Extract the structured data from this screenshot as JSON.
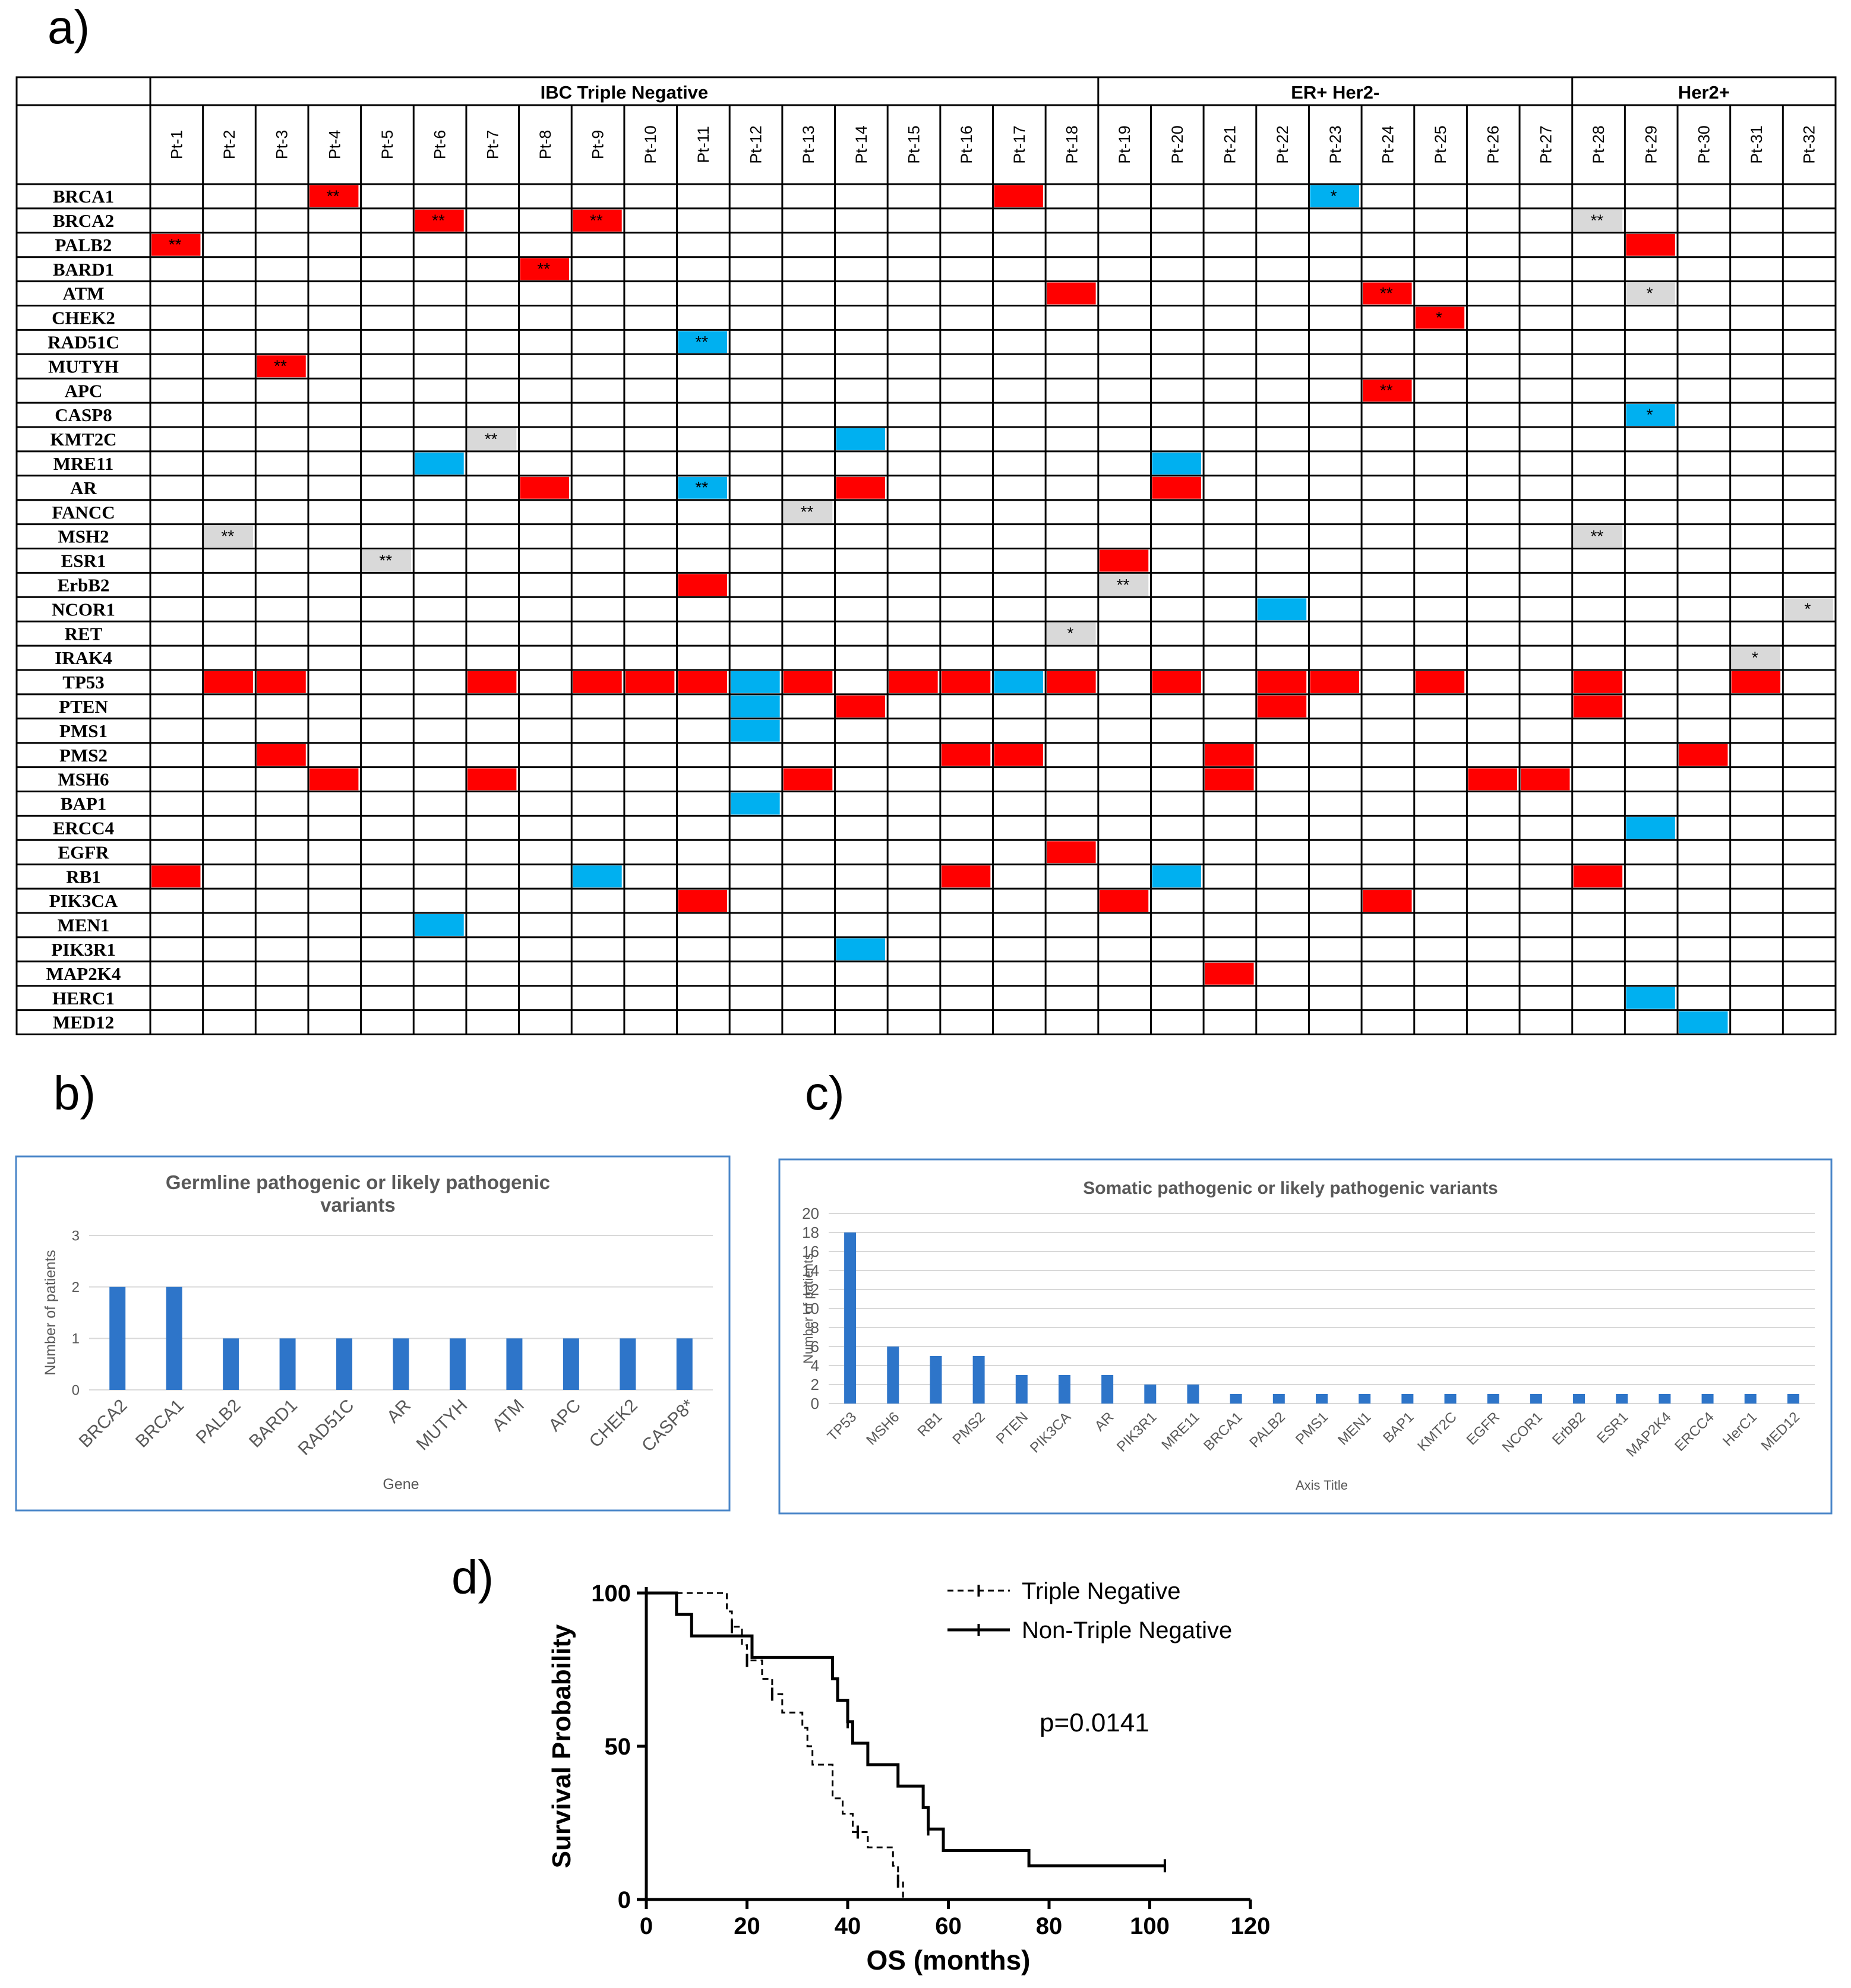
{
  "panels": {
    "a": "a)",
    "b": "b)",
    "c": "c)",
    "d": "d)"
  },
  "colors": {
    "red": "#ff0000",
    "blue": "#00b0f0",
    "grey": "#d9d9d9",
    "bar": "#2e75c9"
  },
  "panel_a": {
    "groups": [
      {
        "label": "IBC Triple Negative",
        "from": 0,
        "to": 17
      },
      {
        "label": "ER+ Her2-",
        "from": 18,
        "to": 26
      },
      {
        "label": "Her2+",
        "from": 27,
        "to": 31
      }
    ],
    "patients": [
      "Pt-1",
      "Pt-2",
      "Pt-3",
      "Pt-4",
      "Pt-5",
      "Pt-6",
      "Pt-7",
      "Pt-8",
      "Pt-9",
      "Pt-10",
      "Pt-11",
      "Pt-12",
      "Pt-13",
      "Pt-14",
      "Pt-15",
      "Pt-16",
      "Pt-17",
      "Pt-18",
      "Pt-19",
      "Pt-20",
      "Pt-21",
      "Pt-22",
      "Pt-23",
      "Pt-24",
      "Pt-25",
      "Pt-26",
      "Pt-27",
      "Pt-28",
      "Pt-29",
      "Pt-30",
      "Pt-31",
      "Pt-32"
    ],
    "genes": [
      "BRCA1",
      "BRCA2",
      "PALB2",
      "BARD1",
      "ATM",
      "CHEK2",
      "RAD51C",
      "MUTYH",
      "APC",
      "CASP8",
      "KMT2C",
      "MRE11",
      "AR",
      "FANCC",
      "MSH2",
      "ESR1",
      "ErbB2",
      "NCOR1",
      "RET",
      "IRAK4",
      "TP53",
      "PTEN",
      "PMS1",
      "PMS2",
      "MSH6",
      "BAP1",
      "ERCC4",
      "EGFR",
      "RB1",
      "PIK3CA",
      "MEN1",
      "PIK3R1",
      "MAP2K4",
      "HERC1",
      "MED12"
    ],
    "cells": [
      {
        "g": 0,
        "p": 3,
        "c": "red",
        "t": "**"
      },
      {
        "g": 0,
        "p": 16,
        "c": "red",
        "t": ""
      },
      {
        "g": 0,
        "p": 22,
        "c": "blue",
        "t": "*"
      },
      {
        "g": 1,
        "p": 5,
        "c": "red",
        "t": "**"
      },
      {
        "g": 1,
        "p": 8,
        "c": "red",
        "t": "**"
      },
      {
        "g": 1,
        "p": 27,
        "c": "grey",
        "t": "**"
      },
      {
        "g": 2,
        "p": 0,
        "c": "red",
        "t": "**"
      },
      {
        "g": 2,
        "p": 28,
        "c": "red",
        "t": ""
      },
      {
        "g": 3,
        "p": 7,
        "c": "red",
        "t": "**"
      },
      {
        "g": 4,
        "p": 17,
        "c": "red",
        "t": ""
      },
      {
        "g": 4,
        "p": 23,
        "c": "red",
        "t": "**"
      },
      {
        "g": 4,
        "p": 28,
        "c": "grey",
        "t": "*"
      },
      {
        "g": 5,
        "p": 24,
        "c": "red",
        "t": "*"
      },
      {
        "g": 6,
        "p": 10,
        "c": "blue",
        "t": "**"
      },
      {
        "g": 7,
        "p": 2,
        "c": "red",
        "t": "**"
      },
      {
        "g": 8,
        "p": 23,
        "c": "red",
        "t": "**"
      },
      {
        "g": 9,
        "p": 28,
        "c": "blue",
        "t": "*"
      },
      {
        "g": 10,
        "p": 6,
        "c": "grey",
        "t": "**"
      },
      {
        "g": 10,
        "p": 13,
        "c": "blue",
        "t": ""
      },
      {
        "g": 11,
        "p": 5,
        "c": "blue",
        "t": ""
      },
      {
        "g": 11,
        "p": 19,
        "c": "blue",
        "t": ""
      },
      {
        "g": 12,
        "p": 7,
        "c": "red",
        "t": ""
      },
      {
        "g": 12,
        "p": 10,
        "c": "blue",
        "t": "**"
      },
      {
        "g": 12,
        "p": 13,
        "c": "red",
        "t": ""
      },
      {
        "g": 12,
        "p": 19,
        "c": "red",
        "t": ""
      },
      {
        "g": 13,
        "p": 12,
        "c": "grey",
        "t": "**"
      },
      {
        "g": 14,
        "p": 1,
        "c": "grey",
        "t": "**"
      },
      {
        "g": 14,
        "p": 27,
        "c": "grey",
        "t": "**"
      },
      {
        "g": 15,
        "p": 4,
        "c": "grey",
        "t": "**"
      },
      {
        "g": 15,
        "p": 18,
        "c": "red",
        "t": ""
      },
      {
        "g": 16,
        "p": 10,
        "c": "red",
        "t": ""
      },
      {
        "g": 16,
        "p": 18,
        "c": "grey",
        "t": "**"
      },
      {
        "g": 17,
        "p": 21,
        "c": "blue",
        "t": ""
      },
      {
        "g": 17,
        "p": 31,
        "c": "grey",
        "t": "*"
      },
      {
        "g": 18,
        "p": 17,
        "c": "grey",
        "t": "*"
      },
      {
        "g": 19,
        "p": 30,
        "c": "grey",
        "t": "*"
      },
      {
        "g": 20,
        "p": 1,
        "c": "red",
        "t": ""
      },
      {
        "g": 20,
        "p": 2,
        "c": "red",
        "t": ""
      },
      {
        "g": 20,
        "p": 6,
        "c": "red",
        "t": ""
      },
      {
        "g": 20,
        "p": 8,
        "c": "red",
        "t": ""
      },
      {
        "g": 20,
        "p": 9,
        "c": "red",
        "t": ""
      },
      {
        "g": 20,
        "p": 10,
        "c": "red",
        "t": ""
      },
      {
        "g": 20,
        "p": 11,
        "c": "blue",
        "t": ""
      },
      {
        "g": 20,
        "p": 12,
        "c": "red",
        "t": ""
      },
      {
        "g": 20,
        "p": 14,
        "c": "red",
        "t": ""
      },
      {
        "g": 20,
        "p": 15,
        "c": "red",
        "t": ""
      },
      {
        "g": 20,
        "p": 16,
        "c": "blue",
        "t": ""
      },
      {
        "g": 20,
        "p": 17,
        "c": "red",
        "t": ""
      },
      {
        "g": 20,
        "p": 19,
        "c": "red",
        "t": ""
      },
      {
        "g": 20,
        "p": 21,
        "c": "red",
        "t": ""
      },
      {
        "g": 20,
        "p": 22,
        "c": "red",
        "t": ""
      },
      {
        "g": 20,
        "p": 24,
        "c": "red",
        "t": ""
      },
      {
        "g": 20,
        "p": 27,
        "c": "red",
        "t": ""
      },
      {
        "g": 20,
        "p": 30,
        "c": "red",
        "t": ""
      },
      {
        "g": 21,
        "p": 11,
        "c": "blue",
        "t": ""
      },
      {
        "g": 21,
        "p": 13,
        "c": "red",
        "t": ""
      },
      {
        "g": 21,
        "p": 21,
        "c": "red",
        "t": ""
      },
      {
        "g": 21,
        "p": 27,
        "c": "red",
        "t": ""
      },
      {
        "g": 22,
        "p": 11,
        "c": "blue",
        "t": ""
      },
      {
        "g": 23,
        "p": 2,
        "c": "red",
        "t": ""
      },
      {
        "g": 23,
        "p": 15,
        "c": "red",
        "t": ""
      },
      {
        "g": 23,
        "p": 16,
        "c": "red",
        "t": ""
      },
      {
        "g": 23,
        "p": 20,
        "c": "red",
        "t": ""
      },
      {
        "g": 23,
        "p": 29,
        "c": "red",
        "t": ""
      },
      {
        "g": 24,
        "p": 3,
        "c": "red",
        "t": ""
      },
      {
        "g": 24,
        "p": 6,
        "c": "red",
        "t": ""
      },
      {
        "g": 24,
        "p": 12,
        "c": "red",
        "t": ""
      },
      {
        "g": 24,
        "p": 20,
        "c": "red",
        "t": ""
      },
      {
        "g": 24,
        "p": 25,
        "c": "red",
        "t": ""
      },
      {
        "g": 24,
        "p": 26,
        "c": "red",
        "t": ""
      },
      {
        "g": 25,
        "p": 11,
        "c": "blue",
        "t": ""
      },
      {
        "g": 26,
        "p": 28,
        "c": "blue",
        "t": ""
      },
      {
        "g": 27,
        "p": 17,
        "c": "red",
        "t": ""
      },
      {
        "g": 28,
        "p": 0,
        "c": "red",
        "t": ""
      },
      {
        "g": 28,
        "p": 8,
        "c": "blue",
        "t": ""
      },
      {
        "g": 28,
        "p": 15,
        "c": "red",
        "t": ""
      },
      {
        "g": 28,
        "p": 19,
        "c": "blue",
        "t": ""
      },
      {
        "g": 28,
        "p": 27,
        "c": "red",
        "t": ""
      },
      {
        "g": 29,
        "p": 10,
        "c": "red",
        "t": ""
      },
      {
        "g": 29,
        "p": 18,
        "c": "red",
        "t": ""
      },
      {
        "g": 29,
        "p": 23,
        "c": "red",
        "t": ""
      },
      {
        "g": 30,
        "p": 5,
        "c": "blue",
        "t": ""
      },
      {
        "g": 31,
        "p": 13,
        "c": "blue",
        "t": ""
      },
      {
        "g": 32,
        "p": 20,
        "c": "red",
        "t": ""
      },
      {
        "g": 33,
        "p": 28,
        "c": "blue",
        "t": ""
      },
      {
        "g": 34,
        "p": 29,
        "c": "blue",
        "t": ""
      }
    ]
  },
  "chart_data": [
    {
      "type": "bar",
      "title": "Germline pathogenic or likely pathogenic variants",
      "title_lines": [
        "Germline pathogenic or likely pathogenic",
        "variants"
      ],
      "categories": [
        "BRCA2",
        "BRCA1",
        "PALB2",
        "BARD1",
        "RAD51C",
        "AR",
        "MUTYH",
        "ATM",
        "APC",
        "CHEK2",
        "CASP8*"
      ],
      "values": [
        2,
        2,
        1,
        1,
        1,
        1,
        1,
        1,
        1,
        1,
        1
      ],
      "xlabel": "Gene",
      "ylabel": "Number of patients",
      "ylim": [
        0,
        3
      ],
      "yticks": [
        0,
        1,
        2,
        3
      ]
    },
    {
      "type": "bar",
      "title": "Somatic pathogenic or likely pathogenic variants",
      "categories": [
        "TP53",
        "MSH6",
        "RB1",
        "PMS2",
        "PTEN",
        "PIK3CA",
        "AR",
        "PIK3R1",
        "MRE11",
        "BRCA1",
        "PALB2",
        "PMS1",
        "MEN1",
        "BAP1",
        "KMT2C",
        "EGFR",
        "NCOR1",
        "ErbB2",
        "ESR1",
        "MAP2K4",
        "ERCC4",
        "HerC1",
        "MED12"
      ],
      "values": [
        18,
        6,
        5,
        5,
        3,
        3,
        3,
        2,
        2,
        1,
        1,
        1,
        1,
        1,
        1,
        1,
        1,
        1,
        1,
        1,
        1,
        1,
        1
      ],
      "xlabel": "Axis Title",
      "ylabel": "Number of patients",
      "ylim": [
        0,
        20
      ],
      "yticks": [
        0,
        2,
        4,
        6,
        8,
        10,
        12,
        14,
        16,
        18,
        20
      ]
    },
    {
      "type": "line",
      "title": "",
      "xlabel": "OS (months)",
      "ylabel": "Survival Probability",
      "xlim": [
        0,
        120
      ],
      "ylim": [
        0,
        100
      ],
      "xticks": [
        0,
        20,
        40,
        60,
        80,
        100,
        120
      ],
      "yticks": [
        0,
        50,
        100
      ],
      "annotation": "p=0.0141",
      "series": [
        {
          "name": "Triple Negative",
          "style": "dashed",
          "x": [
            0,
            15,
            16,
            17,
            19,
            20,
            23,
            25,
            27,
            31,
            32,
            33,
            37,
            39,
            41,
            44,
            49,
            50,
            51
          ],
          "y": [
            100,
            100,
            94,
            89,
            83,
            78,
            72,
            67,
            61,
            56,
            50,
            44,
            33,
            28,
            22,
            17,
            11,
            6,
            0
          ],
          "censor_x": [
            17,
            20,
            25,
            42,
            50
          ]
        },
        {
          "name": "Non-Triple Negative",
          "style": "solid",
          "x": [
            0,
            6,
            9,
            21,
            37,
            38,
            40,
            41,
            44,
            50,
            55,
            56,
            59,
            76,
            103
          ],
          "y": [
            100,
            93,
            86,
            79,
            72,
            65,
            58,
            51,
            44,
            37,
            30,
            23,
            16,
            11,
            11
          ],
          "censor_x": [
            40,
            56,
            103
          ]
        }
      ]
    }
  ]
}
